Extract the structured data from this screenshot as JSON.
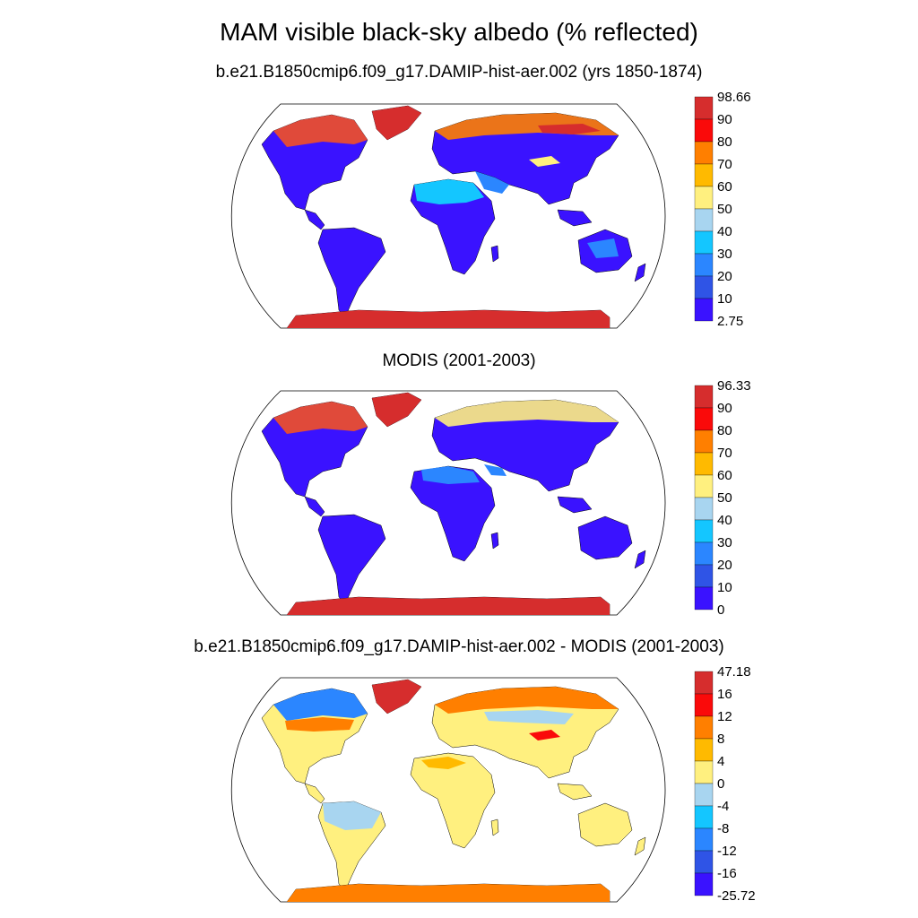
{
  "title": "MAM visible black-sky albedo (% reflected)",
  "panels": [
    {
      "title": "b.e21.B1850cmip6.f09_g17.DAMIP-hist-aer.002 (yrs 1850-1874)",
      "colorbar": {
        "labels": [
          "98.66",
          "90",
          "80",
          "70",
          "60",
          "50",
          "40",
          "30",
          "20",
          "10",
          "2.75"
        ],
        "colors": [
          "#d62d2d",
          "#fa0a0a",
          "#ff7f00",
          "#ffba00",
          "#fff07f",
          "#a8d5f0",
          "#14c6ff",
          "#2b86ff",
          "#2f54e6",
          "#3a12ff"
        ]
      }
    },
    {
      "title": "MODIS (2001-2003)",
      "colorbar": {
        "labels": [
          "96.33",
          "90",
          "80",
          "70",
          "60",
          "50",
          "40",
          "30",
          "20",
          "10",
          "0"
        ],
        "colors": [
          "#d62d2d",
          "#fa0a0a",
          "#ff7f00",
          "#ffba00",
          "#fff07f",
          "#a8d5f0",
          "#14c6ff",
          "#2b86ff",
          "#2f54e6",
          "#3a12ff"
        ]
      }
    },
    {
      "title": "b.e21.B1850cmip6.f09_g17.DAMIP-hist-aer.002 - MODIS (2001-2003)",
      "colorbar": {
        "labels": [
          "47.18",
          "16",
          "12",
          "8",
          "4",
          "0",
          "-4",
          "-8",
          "-12",
          "-16",
          "-25.72"
        ],
        "colors": [
          "#d62d2d",
          "#fa0a0a",
          "#ff7f00",
          "#ffba00",
          "#fff07f",
          "#a8d5f0",
          "#14c6ff",
          "#2b86ff",
          "#2f54e6",
          "#3a12ff"
        ]
      }
    }
  ],
  "chart_data": [
    {
      "type": "heatmap",
      "title": "b.e21.B1850cmip6.f09_g17.DAMIP-hist-aer.002 (yrs 1850-1874)",
      "projection": "Robinson world map",
      "colorbar_levels": [
        2.75,
        10,
        20,
        30,
        40,
        50,
        60,
        70,
        80,
        90,
        98.66
      ],
      "colorbar_range": [
        2.75,
        98.66
      ]
    },
    {
      "type": "heatmap",
      "title": "MODIS (2001-2003)",
      "projection": "Robinson world map",
      "colorbar_levels": [
        0,
        10,
        20,
        30,
        40,
        50,
        60,
        70,
        80,
        90,
        96.33
      ],
      "colorbar_range": [
        0,
        96.33
      ]
    },
    {
      "type": "heatmap",
      "title": "b.e21.B1850cmip6.f09_g17.DAMIP-hist-aer.002 - MODIS (2001-2003)",
      "projection": "Robinson world map",
      "colorbar_levels": [
        -25.72,
        -16,
        -12,
        -8,
        -4,
        0,
        4,
        8,
        12,
        16,
        47.18
      ],
      "colorbar_range": [
        -25.72,
        47.18
      ]
    }
  ]
}
